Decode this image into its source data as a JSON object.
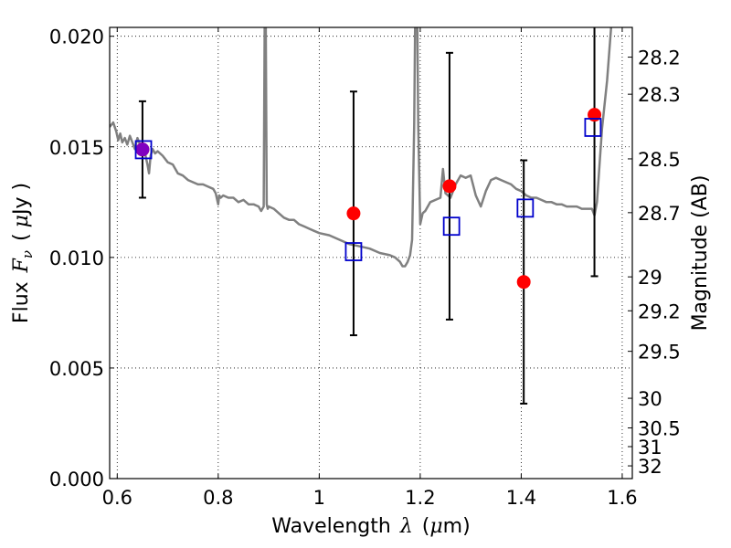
{
  "chart_data": {
    "type": "scatter",
    "xlabel_text": "Wavelength",
    "xlabel_sym": "λ",
    "xlabel_unit_open": "(",
    "xlabel_unit_mu": "μ",
    "xlabel_unit_rest": "m)",
    "ylabel_text": "Flux",
    "ylabel_sym": "F",
    "ylabel_sub": "ν",
    "ylabel_unit_open": "(",
    "ylabel_unit_mu": "μ",
    "ylabel_unit_rest": "Jy )",
    "y2label": "Magnitude (AB)",
    "xlim": [
      0.585,
      1.62
    ],
    "ylim": [
      0.0,
      0.0204
    ],
    "grid": true,
    "x_ticks": [
      {
        "value": 0.6,
        "label": "0.6"
      },
      {
        "value": 0.8,
        "label": "0.8"
      },
      {
        "value": 1.0,
        "label": "1"
      },
      {
        "value": 1.2,
        "label": "1.2"
      },
      {
        "value": 1.4,
        "label": "1.4"
      },
      {
        "value": 1.6,
        "label": "1.6"
      }
    ],
    "y_ticks": [
      {
        "value": 0.0,
        "label": "0.000"
      },
      {
        "value": 0.005,
        "label": "0.005"
      },
      {
        "value": 0.01,
        "label": "0.010"
      },
      {
        "value": 0.015,
        "label": "0.015"
      },
      {
        "value": 0.02,
        "label": "0.020"
      }
    ],
    "y2_ticks": [
      {
        "mag": 28.2,
        "label": "28.2"
      },
      {
        "mag": 28.3,
        "label": "28.3"
      },
      {
        "mag": 28.5,
        "label": "28.5"
      },
      {
        "mag": 28.7,
        "label": "28.7"
      },
      {
        "mag": 29.0,
        "label": "29"
      },
      {
        "mag": 29.2,
        "label": "29.2"
      },
      {
        "mag": 29.5,
        "label": "29.5"
      },
      {
        "mag": 30.0,
        "label": "30"
      },
      {
        "mag": 30.5,
        "label": "30.5"
      },
      {
        "mag": 31.0,
        "label": "31"
      },
      {
        "mag": 32.0,
        "label": "32"
      }
    ],
    "series": [
      {
        "kind": "model_spectrum",
        "color": "#808080",
        "x": [
          0.585,
          0.592,
          0.598,
          0.602,
          0.606,
          0.61,
          0.615,
          0.62,
          0.625,
          0.63,
          0.635,
          0.64,
          0.645,
          0.65,
          0.655,
          0.66,
          0.663,
          0.666,
          0.67,
          0.675,
          0.68,
          0.69,
          0.7,
          0.71,
          0.72,
          0.73,
          0.74,
          0.75,
          0.76,
          0.77,
          0.78,
          0.79,
          0.795,
          0.8,
          0.802,
          0.805,
          0.81,
          0.82,
          0.83,
          0.84,
          0.85,
          0.86,
          0.87,
          0.88,
          0.885,
          0.89,
          0.892,
          0.894,
          0.896,
          0.898,
          0.9,
          0.91,
          0.92,
          0.93,
          0.94,
          0.95,
          0.96,
          0.97,
          0.98,
          0.99,
          1.0,
          1.02,
          1.04,
          1.06,
          1.08,
          1.1,
          1.12,
          1.14,
          1.15,
          1.16,
          1.165,
          1.17,
          1.175,
          1.18,
          1.184,
          1.188,
          1.19,
          1.192,
          1.194,
          1.196,
          1.2,
          1.205,
          1.21,
          1.22,
          1.23,
          1.24,
          1.245,
          1.25,
          1.26,
          1.265,
          1.27,
          1.28,
          1.29,
          1.3,
          1.31,
          1.32,
          1.33,
          1.34,
          1.35,
          1.36,
          1.37,
          1.38,
          1.39,
          1.4,
          1.41,
          1.42,
          1.43,
          1.44,
          1.45,
          1.46,
          1.47,
          1.48,
          1.49,
          1.5,
          1.51,
          1.52,
          1.53,
          1.54,
          1.545,
          1.55,
          1.56,
          1.57,
          1.58,
          1.585,
          1.59
        ],
        "y": [
          0.0159,
          0.0161,
          0.0157,
          0.0153,
          0.0156,
          0.0152,
          0.0154,
          0.0151,
          0.0155,
          0.0152,
          0.0149,
          0.0154,
          0.0151,
          0.0149,
          0.0147,
          0.0142,
          0.0138,
          0.0146,
          0.0149,
          0.0147,
          0.0148,
          0.0146,
          0.0143,
          0.0142,
          0.0138,
          0.0137,
          0.0135,
          0.0134,
          0.0133,
          0.0133,
          0.0132,
          0.0131,
          0.0129,
          0.0124,
          0.0128,
          0.0127,
          0.0128,
          0.0127,
          0.0127,
          0.0125,
          0.0126,
          0.0124,
          0.0124,
          0.0123,
          0.0121,
          0.0123,
          0.021,
          0.021,
          0.0124,
          0.0122,
          0.0123,
          0.0122,
          0.012,
          0.0118,
          0.0117,
          0.0117,
          0.0115,
          0.0114,
          0.0113,
          0.0112,
          0.0111,
          0.011,
          0.0108,
          0.0106,
          0.0105,
          0.0104,
          0.0102,
          0.0101,
          0.01,
          0.0098,
          0.0096,
          0.0096,
          0.0098,
          0.0101,
          0.0108,
          0.016,
          0.021,
          0.021,
          0.021,
          0.016,
          0.0115,
          0.012,
          0.0121,
          0.0125,
          0.0126,
          0.0127,
          0.014,
          0.0129,
          0.0127,
          0.013,
          0.0133,
          0.0137,
          0.0136,
          0.0137,
          0.0128,
          0.0123,
          0.013,
          0.0135,
          0.0136,
          0.0135,
          0.0134,
          0.0133,
          0.0131,
          0.013,
          0.0128,
          0.0127,
          0.0127,
          0.0126,
          0.0125,
          0.0125,
          0.0124,
          0.0124,
          0.0123,
          0.0123,
          0.0123,
          0.0122,
          0.0122,
          0.0122,
          0.0119,
          0.0125,
          0.0158,
          0.018,
          0.021,
          0.021,
          0.021
        ]
      },
      {
        "kind": "observed",
        "marker": "circle",
        "color": "#ff0000",
        "x": [
          0.65,
          1.068,
          1.258,
          1.405,
          1.545
        ],
        "y": [
          0.01488,
          0.01199,
          0.01322,
          0.00889,
          0.01645
        ],
        "yerr": [
          0.00218,
          0.00551,
          0.00603,
          0.0055,
          0.0073
        ]
      },
      {
        "kind": "model_photometry",
        "marker": "square",
        "color": "#0000cc",
        "x": [
          0.652,
          1.068,
          1.262,
          1.408,
          1.542
        ],
        "y": [
          0.01487,
          0.01026,
          0.01141,
          0.01223,
          0.01588
        ]
      }
    ],
    "special_markers": [
      {
        "x": 0.65,
        "y": 0.01488,
        "color": "#8000c0",
        "marker": "circle"
      }
    ]
  }
}
